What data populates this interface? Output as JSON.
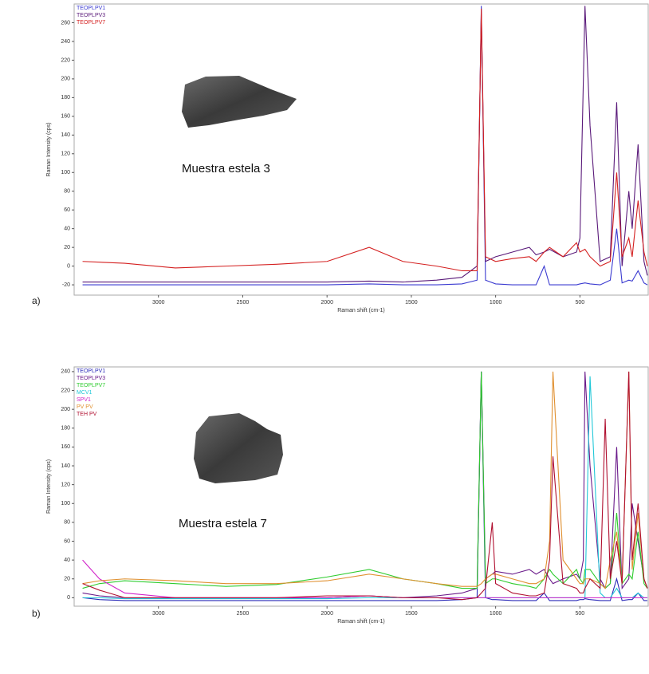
{
  "chart_data": [
    {
      "type": "line",
      "panel_label": "a)",
      "annotation": "Muestra estela 3",
      "x_label": "Raman shift (cm-1)",
      "y_label": "Raman Intensity (cps)",
      "xlim": [
        3500,
        95
      ],
      "ylim": [
        -31,
        280
      ],
      "xticks": [
        3000,
        2500,
        2000,
        1500,
        1000,
        500
      ],
      "yticks": [
        -20,
        0,
        20,
        40,
        60,
        80,
        100,
        120,
        140,
        160,
        180,
        200,
        220,
        240,
        260
      ],
      "x": [
        3450,
        3200,
        2900,
        2600,
        2300,
        2000,
        1750,
        1550,
        1350,
        1200,
        1110,
        1085,
        1060,
        1000,
        900,
        800,
        760,
        712,
        680,
        600,
        520,
        500,
        470,
        440,
        380,
        320,
        282,
        250,
        210,
        190,
        155,
        120,
        100
      ],
      "series": [
        {
          "name": "TEOPLPV1",
          "color": "#3a3ad0",
          "values": [
            -20,
            -20,
            -20,
            -20,
            -20,
            -20,
            -19,
            -20,
            -20,
            -19,
            -15,
            278,
            -15,
            -19,
            -20,
            -20,
            -20,
            0,
            -20,
            -20,
            -20,
            -19,
            -18,
            -19,
            -20,
            -15,
            40,
            -18,
            -15,
            -16,
            -5,
            -18,
            -20
          ]
        },
        {
          "name": "TEOPLPV3",
          "color": "#5a1a7a",
          "values": [
            -17,
            -17,
            -17,
            -17,
            -17,
            -17,
            -16,
            -17,
            -15,
            -12,
            0,
            270,
            5,
            10,
            15,
            20,
            12,
            15,
            18,
            10,
            15,
            30,
            278,
            150,
            5,
            10,
            175,
            0,
            80,
            40,
            130,
            5,
            -10
          ]
        },
        {
          "name": "TEOPLPV7",
          "color": "#d42020",
          "values": [
            5,
            3,
            -2,
            0,
            2,
            5,
            20,
            5,
            0,
            -5,
            -5,
            275,
            10,
            5,
            8,
            10,
            5,
            15,
            20,
            10,
            25,
            15,
            18,
            10,
            0,
            5,
            100,
            10,
            30,
            10,
            70,
            15,
            0
          ]
        }
      ]
    },
    {
      "type": "line",
      "panel_label": "b)",
      "annotation": "Muestra estela 7",
      "x_label": "Raman shift (cm-1)",
      "y_label": "Raman Intensity (cps)",
      "xlim": [
        3500,
        95
      ],
      "ylim": [
        -9,
        245
      ],
      "xticks": [
        3000,
        2500,
        2000,
        1500,
        1000,
        500
      ],
      "yticks": [
        0,
        20,
        40,
        60,
        80,
        100,
        120,
        140,
        160,
        180,
        200,
        220,
        240
      ],
      "x": [
        3450,
        3350,
        3200,
        2900,
        2600,
        2300,
        2000,
        1750,
        1550,
        1350,
        1200,
        1110,
        1085,
        1060,
        1020,
        1000,
        900,
        800,
        760,
        712,
        680,
        660,
        600,
        520,
        500,
        480,
        470,
        440,
        380,
        350,
        320,
        282,
        250,
        210,
        190,
        155,
        120,
        100
      ],
      "series": [
        {
          "name": "TEOPLPV1",
          "color": "#2a2ab8",
          "values": [
            0,
            -2,
            -3,
            -3,
            -3,
            -3,
            -3,
            -3,
            -3,
            -3,
            -2,
            0,
            240,
            0,
            -2,
            -2,
            -3,
            -3,
            -3,
            5,
            -3,
            -3,
            -3,
            -3,
            -2,
            -2,
            -1,
            -2,
            -3,
            -3,
            -3,
            20,
            -3,
            -2,
            -2,
            5,
            -3,
            -3
          ]
        },
        {
          "name": "TEOPLPV3",
          "color": "#6a1a8a",
          "values": [
            5,
            2,
            0,
            0,
            0,
            0,
            0,
            2,
            0,
            2,
            5,
            10,
            240,
            20,
            25,
            28,
            25,
            30,
            25,
            30,
            20,
            15,
            20,
            25,
            20,
            40,
            240,
            140,
            20,
            10,
            15,
            160,
            10,
            20,
            100,
            60,
            20,
            10
          ]
        },
        {
          "name": "TEOPLPV7",
          "color": "#2ecc2e",
          "values": [
            10,
            15,
            18,
            15,
            12,
            14,
            22,
            30,
            20,
            15,
            10,
            10,
            240,
            15,
            20,
            20,
            15,
            12,
            10,
            20,
            30,
            25,
            15,
            30,
            20,
            15,
            30,
            30,
            15,
            10,
            15,
            90,
            15,
            25,
            20,
            70,
            15,
            10
          ]
        },
        {
          "name": "MCV1",
          "color": "#22c8d8",
          "values": [
            0,
            0,
            -1,
            -1,
            -1,
            -1,
            -1,
            0,
            0,
            0,
            0,
            0,
            0,
            0,
            0,
            0,
            0,
            0,
            0,
            0,
            0,
            0,
            0,
            0,
            0,
            0,
            0,
            235,
            5,
            0,
            0,
            10,
            0,
            0,
            0,
            5,
            0,
            0
          ]
        },
        {
          "name": "SPV1",
          "color": "#d020c8",
          "values": [
            40,
            20,
            5,
            0,
            0,
            0,
            0,
            2,
            0,
            0,
            0,
            0,
            0,
            0,
            0,
            0,
            0,
            0,
            0,
            0,
            0,
            0,
            0,
            0,
            0,
            0,
            0,
            0,
            0,
            0,
            0,
            0,
            0,
            0,
            0,
            0,
            0,
            0
          ]
        },
        {
          "name": "PV PV",
          "color": "#e09030",
          "values": [
            15,
            18,
            20,
            18,
            15,
            15,
            18,
            25,
            20,
            15,
            12,
            12,
            15,
            20,
            25,
            25,
            20,
            15,
            15,
            20,
            60,
            240,
            40,
            20,
            15,
            15,
            20,
            20,
            15,
            10,
            40,
            70,
            15,
            240,
            30,
            90,
            20,
            10
          ]
        },
        {
          "name": "TEH PV",
          "color": "#b01030",
          "values": [
            15,
            8,
            0,
            0,
            0,
            0,
            2,
            2,
            0,
            0,
            -2,
            0,
            5,
            10,
            80,
            15,
            5,
            2,
            2,
            5,
            40,
            150,
            15,
            10,
            5,
            5,
            10,
            20,
            10,
            190,
            20,
            60,
            15,
            240,
            40,
            100,
            20,
            10
          ]
        }
      ]
    }
  ]
}
